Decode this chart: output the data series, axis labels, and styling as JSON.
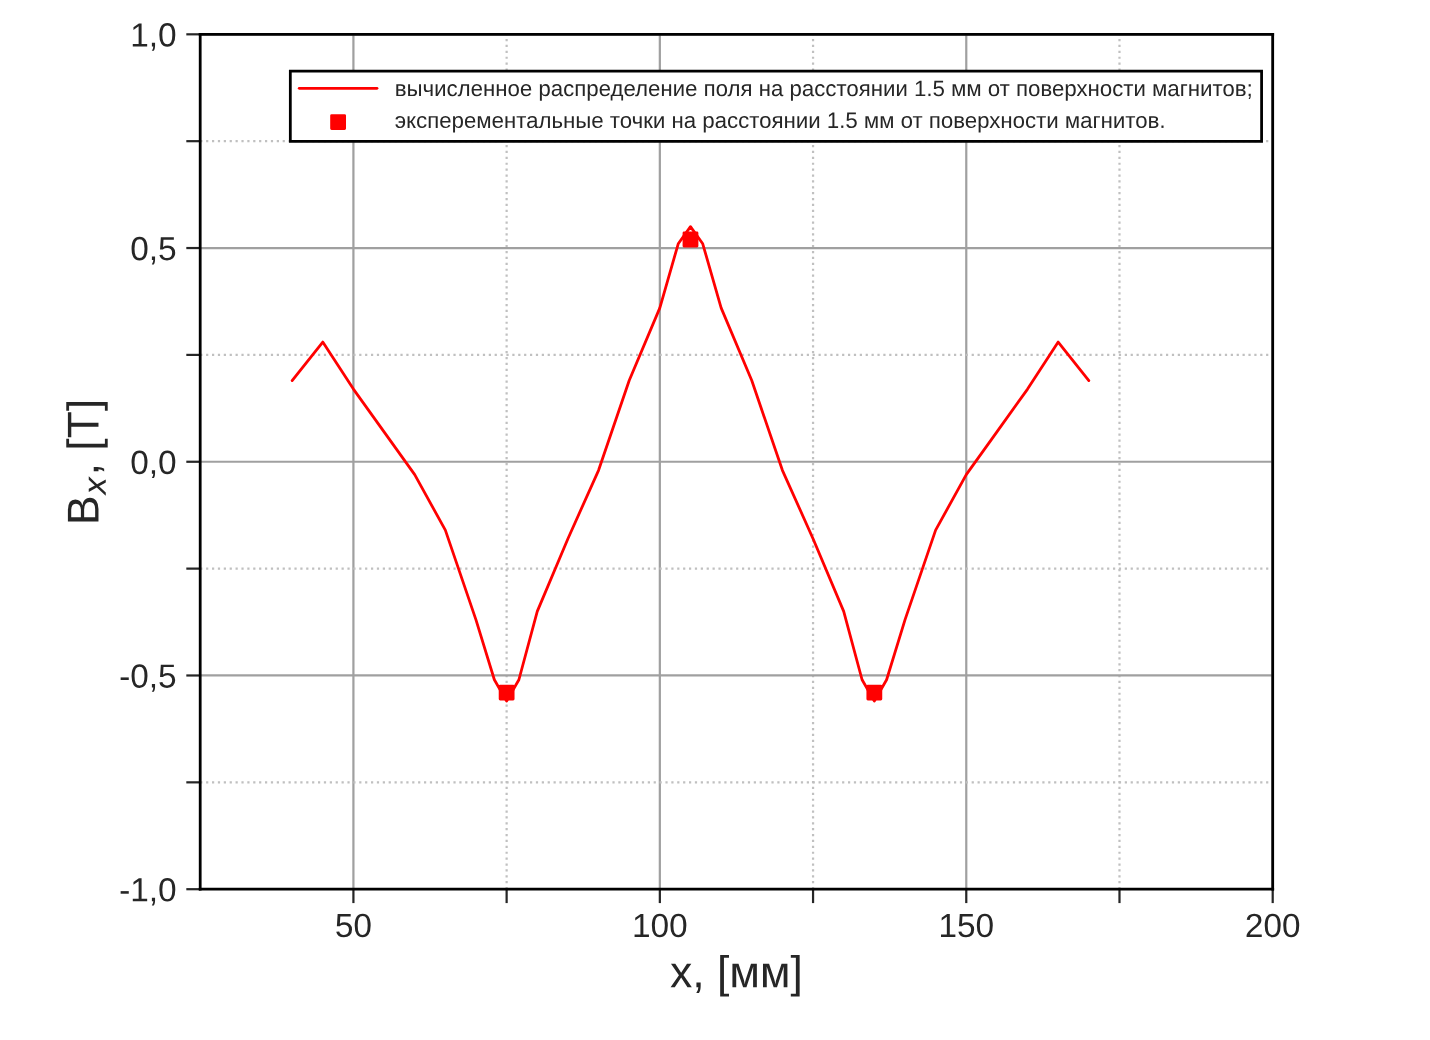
{
  "chart_data": {
    "type": "line",
    "xlabel": "x, [мм]",
    "ylabel": "B$_{x}$, [T]",
    "xlim": [
      25,
      200
    ],
    "ylim": [
      -1.0,
      1.0
    ],
    "xticks": [
      {
        "value": 50,
        "label": "50"
      },
      {
        "value": 75,
        "label": null
      },
      {
        "value": 100,
        "label": "100"
      },
      {
        "value": 125,
        "label": null
      },
      {
        "value": 150,
        "label": "150"
      },
      {
        "value": 175,
        "label": null
      },
      {
        "value": 200,
        "label": "200"
      }
    ],
    "yticks": [
      {
        "value": -1.0,
        "label": "-1,0"
      },
      {
        "value": -0.75,
        "label": null
      },
      {
        "value": -0.5,
        "label": "-0,5"
      },
      {
        "value": -0.25,
        "label": null
      },
      {
        "value": 0.0,
        "label": "0,0"
      },
      {
        "value": 0.25,
        "label": null
      },
      {
        "value": 0.5,
        "label": "0,5"
      },
      {
        "value": 0.75,
        "label": null
      },
      {
        "value": 1.0,
        "label": "1,0"
      }
    ],
    "grid": true,
    "legend": "top right",
    "series": [
      {
        "name": "вычисленное распределение поля на расстоянии 1.5 мм от поверхности магнитов;",
        "color": "#ff0000",
        "marker": "none",
        "line_style": "solid",
        "x": [
          40,
          45,
          50,
          55,
          60,
          65,
          70,
          73,
          75,
          77,
          80,
          85,
          90,
          95,
          100,
          103,
          105,
          107,
          110,
          115,
          120,
          125,
          130,
          133,
          135,
          137,
          140,
          145,
          150,
          155,
          160,
          165,
          170
        ],
        "values": [
          0.19,
          0.28,
          0.17,
          0.07,
          -0.03,
          -0.16,
          -0.37,
          -0.51,
          -0.56,
          -0.51,
          -0.35,
          -0.18,
          -0.02,
          0.19,
          0.36,
          0.51,
          0.55,
          0.51,
          0.36,
          0.19,
          -0.02,
          -0.18,
          -0.35,
          -0.51,
          -0.56,
          -0.51,
          -0.37,
          -0.16,
          -0.03,
          0.07,
          0.17,
          0.28,
          0.19
        ]
      },
      {
        "name": "эксперементальные точки на расстоянии 1.5 мм от поверхности магнитов.",
        "type": "scatter",
        "color": "#ff0000",
        "marker": "square",
        "x": [
          75,
          105,
          135
        ],
        "values": [
          -0.54,
          0.52,
          -0.54
        ]
      }
    ]
  }
}
